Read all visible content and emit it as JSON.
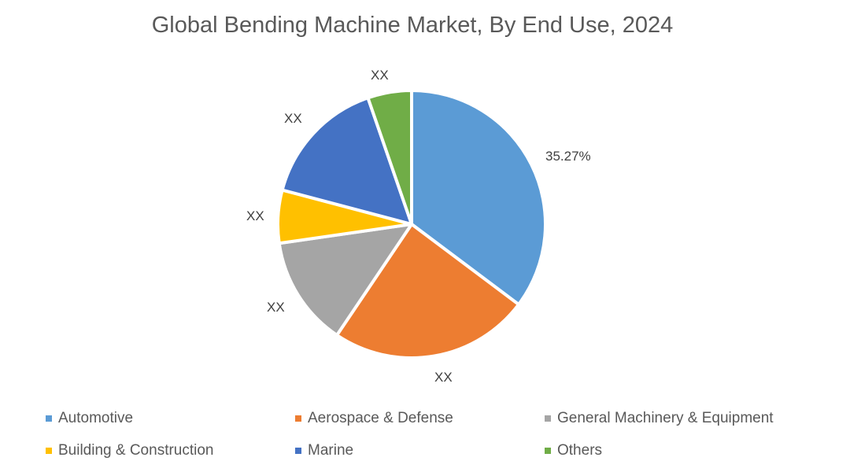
{
  "chart_data": {
    "type": "pie",
    "title": "Global Bending Machine Market, By End Use, 2024",
    "categories": [
      "Automotive",
      "Aerospace & Defense",
      "General Machinery & Equipment",
      "Building & Construction",
      "Marine",
      "Others"
    ],
    "values": [
      35.27,
      24.2,
      13.3,
      6.4,
      15.6,
      5.3
    ],
    "data_labels": [
      "35.27%",
      "XX",
      "XX",
      "XX",
      "XX",
      "XX"
    ],
    "colors": [
      "#5B9BD5",
      "#ED7D31",
      "#A5A5A5",
      "#FFC000",
      "#4472C4",
      "#70AD47"
    ],
    "legend_position": "bottom"
  },
  "title": "Global Bending Machine Market, By End Use, 2024",
  "labels": {
    "automotive": "35.27%",
    "aerospace": "XX",
    "general": "XX",
    "building": "XX",
    "marine": "XX",
    "others": "XX"
  },
  "legend": [
    {
      "label": "Automotive",
      "color": "#5B9BD5"
    },
    {
      "label": "Aerospace & Defense",
      "color": "#ED7D31"
    },
    {
      "label": "General Machinery & Equipment",
      "color": "#A5A5A5"
    },
    {
      "label": "Building & Construction",
      "color": "#FFC000"
    },
    {
      "label": "Marine",
      "color": "#4472C4"
    },
    {
      "label": "Others",
      "color": "#70AD47"
    }
  ]
}
